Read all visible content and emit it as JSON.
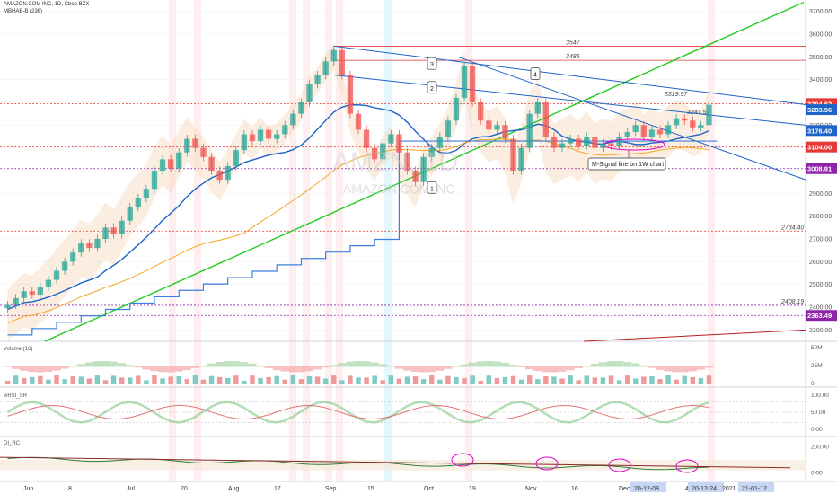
{
  "header": {
    "title": "AMAZON.COM INC, 1D, Cboe BZX",
    "indicator": "MBHAB-B (236)"
  },
  "watermark": {
    "ticker": "AMZN, 1D",
    "name": "AMAZON.COM INC"
  },
  "colors": {
    "up": "#26a69a",
    "down": "#ef5350",
    "green_trend": "#22cc22",
    "blue": "#1e63c8",
    "orange": "#f5a623",
    "red_level": "#e53935",
    "purple": "#8e24aa",
    "magenta": "#e100d0",
    "dark_red": "#b71c1c"
  },
  "chart_data": [
    {
      "type": "candlestick",
      "title": "AMAZON.COM INC, 1D, Cboe BZX",
      "ylim": [
        2250,
        3750
      ],
      "x_ticks": [
        "Jun",
        "8",
        "Jul",
        "20",
        "Aug",
        "17",
        "Sep",
        "15",
        "Oct",
        "19",
        "Nov",
        "16",
        "Dec",
        "20-12-08",
        "4",
        "20-12-24",
        "2021",
        "21-01-12"
      ],
      "y_ticks": [
        2300,
        2400,
        2500,
        2600,
        2700,
        2800,
        2900,
        3000,
        3100,
        3200,
        3300,
        3400,
        3500,
        3600,
        3700
      ],
      "price_labels": [
        {
          "value": 3294.62,
          "label": "3294.62",
          "color": "#e53935"
        },
        {
          "value": 3283.96,
          "label": "3283.96",
          "color": "#1e63c8"
        },
        {
          "value": 3176.4,
          "label": "3176.40",
          "color": "#1e63c8"
        },
        {
          "value": 3104.0,
          "label": "3104.00",
          "color": "#e53935"
        },
        {
          "value": 3008.91,
          "label": "3008.91",
          "color": "#8e24aa"
        },
        {
          "value": 2363.49,
          "label": "2363.49",
          "color": "#8e24aa"
        }
      ],
      "level_annotations": [
        {
          "value": 3547,
          "label": "3547"
        },
        {
          "value": 3485,
          "label": "3485"
        },
        {
          "value": 3319.97,
          "label": "3319.97"
        },
        {
          "value": 3241.57,
          "label": "3241.57"
        },
        {
          "value": 2734.4,
          "label": "2734.40"
        },
        {
          "value": 2408.19,
          "label": "2408.19"
        }
      ],
      "wave_labels": [
        "1",
        "2",
        "3",
        "4"
      ],
      "callout": "M-Signal line on 1W chart",
      "close_series": [
        2410,
        2440,
        2470,
        2455,
        2490,
        2520,
        2560,
        2600,
        2640,
        2680,
        2660,
        2700,
        2750,
        2720,
        2780,
        2840,
        2880,
        2920,
        3000,
        3050,
        3010,
        3080,
        3140,
        3100,
        3060,
        3000,
        2960,
        3020,
        3090,
        3160,
        3130,
        3180,
        3140,
        3160,
        3200,
        3250,
        3300,
        3380,
        3420,
        3480,
        3530,
        3420,
        3250,
        3180,
        3100,
        3050,
        3120,
        3160,
        3080,
        3000,
        2950,
        3060,
        3100,
        3150,
        3220,
        3320,
        3460,
        3300,
        3220,
        3180,
        3200,
        3140,
        3000,
        3100,
        3250,
        3300,
        3150,
        3100,
        3120,
        3140,
        3110,
        3150,
        3100,
        3120,
        3110,
        3150,
        3170,
        3200,
        3150,
        3180,
        3160,
        3200,
        3230,
        3220,
        3190,
        3200,
        3290
      ]
    },
    {
      "type": "bar",
      "title": "Volume (16)",
      "y_ticks": [
        "50M",
        "25M",
        "0"
      ]
    },
    {
      "type": "line",
      "title": "wRSI_SR",
      "y_ticks": [
        100,
        50,
        0
      ],
      "ylim": [
        0,
        100
      ]
    },
    {
      "type": "line",
      "title": "DI_RC",
      "y_ticks": [
        200,
        0
      ],
      "ylim": [
        -50,
        250
      ]
    }
  ]
}
